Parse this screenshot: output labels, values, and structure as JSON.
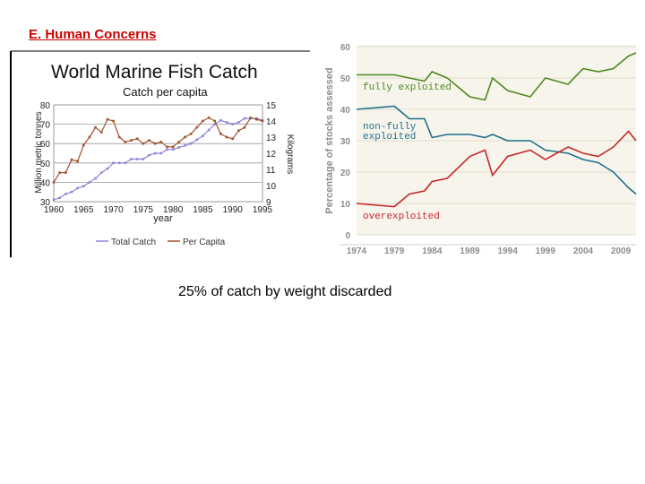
{
  "slide": {
    "heading": "E. Human Concerns",
    "caption": "25% of catch by weight discarded"
  },
  "chart_data": [
    {
      "type": "line",
      "title": "World Marine Fish Catch",
      "subtitle": "Catch per capita",
      "xlabel": "year",
      "ylabel": "Million metric tonnes",
      "y2label": "Kilograms",
      "xlim": [
        1960,
        1995
      ],
      "ylim": [
        30,
        80
      ],
      "y2lim": [
        9,
        15
      ],
      "x_ticks": [
        "1960",
        "1965",
        "1970",
        "1975",
        "1980",
        "1985",
        "1990",
        "1995"
      ],
      "y_ticks": [
        "30",
        "40",
        "50",
        "60",
        "70",
        "80"
      ],
      "y2_ticks": [
        "9",
        "10",
        "11",
        "12",
        "13",
        "14",
        "15"
      ],
      "grid": true,
      "legend": "bottom",
      "series": [
        {
          "name": "Total Catch",
          "axis": "left",
          "color": "#8f86d8",
          "x": [
            1960,
            1961,
            1962,
            1963,
            1964,
            1965,
            1966,
            1967,
            1968,
            1969,
            1970,
            1971,
            1972,
            1973,
            1974,
            1975,
            1976,
            1977,
            1978,
            1979,
            1980,
            1981,
            1982,
            1983,
            1984,
            1985,
            1986,
            1987,
            1988,
            1989,
            1990,
            1991,
            1992,
            1993,
            1994,
            1995
          ],
          "values": [
            31,
            32,
            34,
            35,
            37,
            38,
            40,
            42,
            45,
            47,
            50,
            50,
            50,
            52,
            52,
            52,
            54,
            55,
            55,
            57,
            57,
            58,
            59,
            60,
            62,
            64,
            67,
            70,
            72,
            71,
            70,
            71,
            73,
            73,
            73,
            72
          ]
        },
        {
          "name": "Per Capita",
          "axis": "right",
          "color": "#a0522d",
          "x": [
            1960,
            1961,
            1962,
            1963,
            1964,
            1965,
            1966,
            1967,
            1968,
            1969,
            1970,
            1971,
            1972,
            1973,
            1974,
            1975,
            1976,
            1977,
            1978,
            1979,
            1980,
            1981,
            1982,
            1983,
            1984,
            1985,
            1986,
            1987,
            1988,
            1989,
            1990,
            1991,
            1992,
            1993,
            1994,
            1995
          ],
          "values": [
            10.2,
            10.8,
            10.8,
            11.6,
            11.5,
            12.5,
            13.0,
            13.6,
            13.3,
            14.1,
            14.0,
            13.0,
            12.7,
            12.8,
            12.9,
            12.6,
            12.8,
            12.6,
            12.7,
            12.4,
            12.4,
            12.7,
            13.0,
            13.2,
            13.6,
            14.0,
            14.2,
            14.0,
            13.2,
            13.0,
            12.9,
            13.4,
            13.6,
            14.2,
            14.1,
            14.0
          ]
        }
      ]
    },
    {
      "type": "line",
      "title": "",
      "ylabel": "Percentage of stocks assessed",
      "xlim": [
        1974,
        2011
      ],
      "ylim": [
        0,
        60
      ],
      "x_ticks": [
        "1974",
        "1979",
        "1984",
        "1989",
        "1994",
        "1999",
        "2004",
        "2009"
      ],
      "y_ticks": [
        "0",
        "10",
        "20",
        "30",
        "40",
        "50",
        "60"
      ],
      "grid": true,
      "series": [
        {
          "name": "fully exploited",
          "color": "#4d8a1e",
          "x": [
            1974,
            1979,
            1981,
            1983,
            1984,
            1986,
            1989,
            1991,
            1992,
            1994,
            1997,
            1999,
            2002,
            2004,
            2006,
            2008,
            2010,
            2011
          ],
          "values": [
            51,
            51,
            50,
            49,
            52,
            50,
            44,
            43,
            50,
            46,
            44,
            50,
            48,
            53,
            52,
            53,
            57,
            58
          ]
        },
        {
          "name": "non-fully exploited",
          "color": "#1f6f8b",
          "x": [
            1974,
            1979,
            1981,
            1983,
            1984,
            1986,
            1989,
            1991,
            1992,
            1994,
            1997,
            1999,
            2002,
            2004,
            2006,
            2008,
            2010,
            2011
          ],
          "values": [
            40,
            41,
            37,
            37,
            31,
            32,
            32,
            31,
            32,
            30,
            30,
            27,
            26,
            24,
            23,
            20,
            15,
            13
          ]
        },
        {
          "name": "overexploited",
          "color": "#c62828",
          "x": [
            1974,
            1979,
            1981,
            1983,
            1984,
            1986,
            1989,
            1991,
            1992,
            1994,
            1997,
            1999,
            2002,
            2004,
            2006,
            2008,
            2010,
            2011
          ],
          "values": [
            10,
            9,
            13,
            14,
            17,
            18,
            25,
            27,
            19,
            25,
            27,
            24,
            28,
            26,
            25,
            28,
            33,
            30
          ]
        }
      ]
    }
  ]
}
